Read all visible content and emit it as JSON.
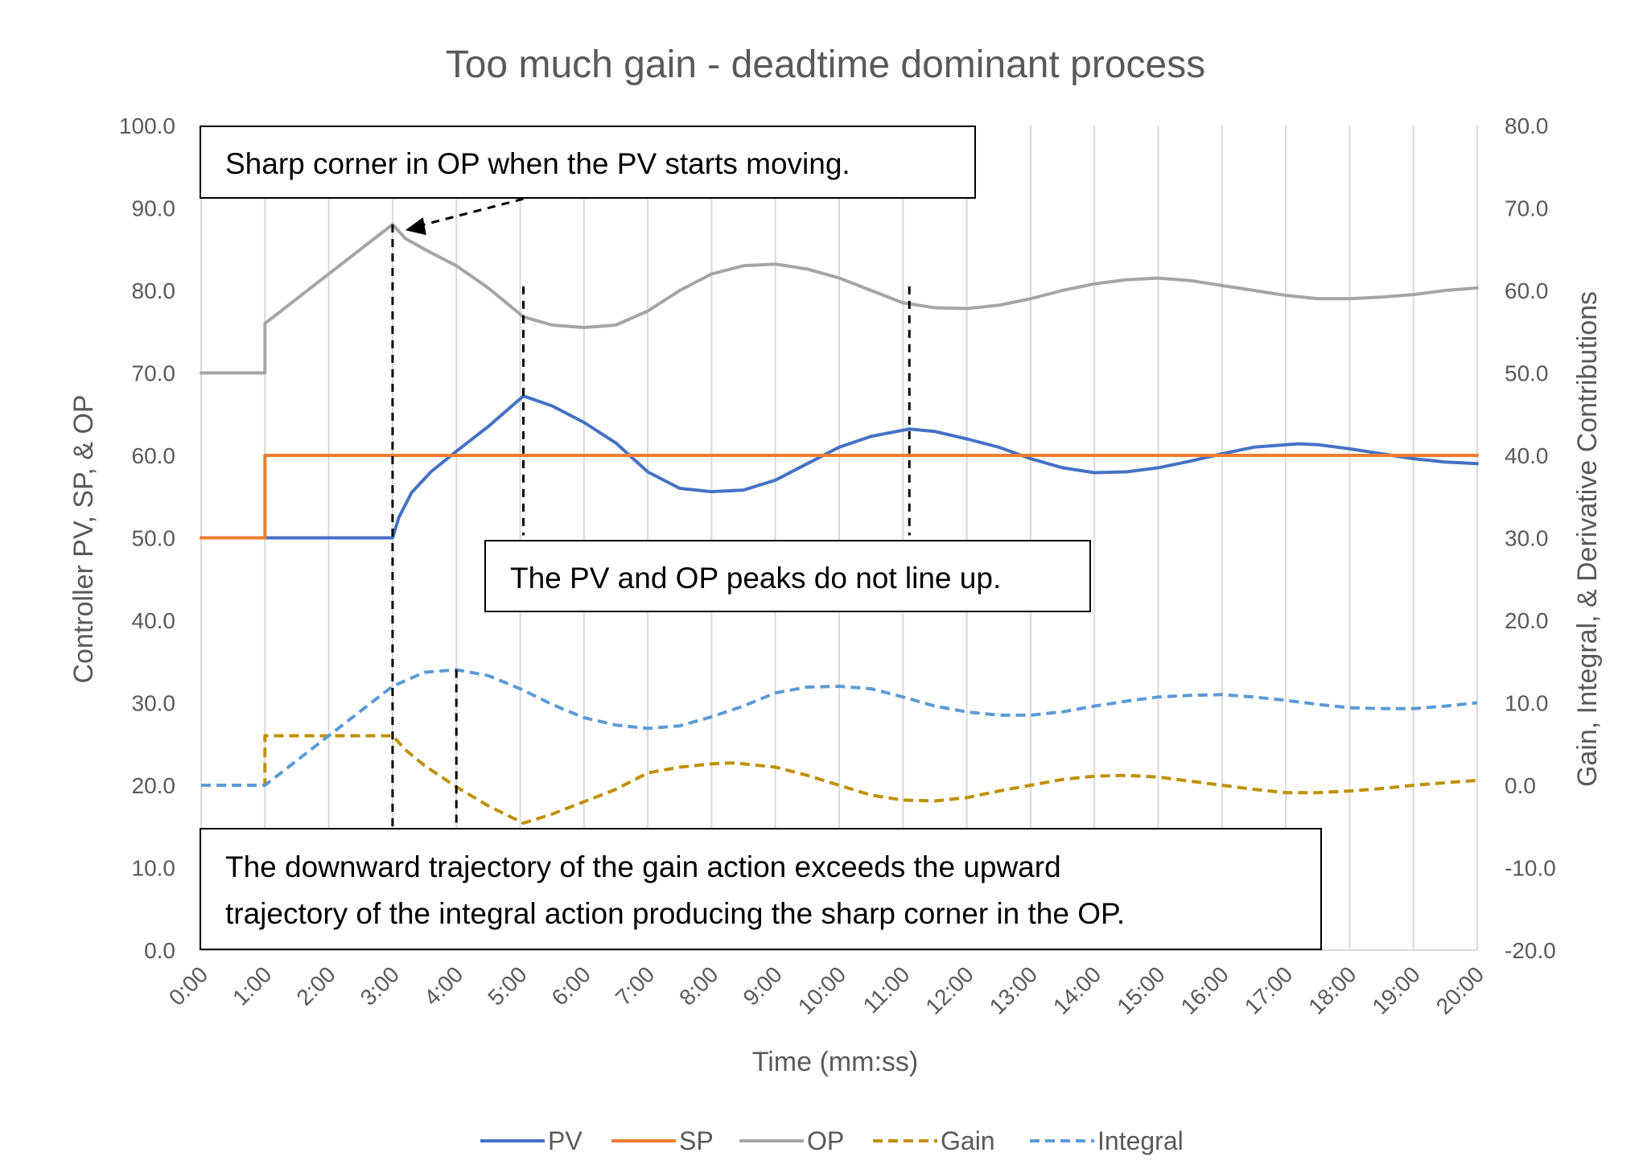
{
  "chart_data": {
    "type": "line",
    "title": "Too much gain - deadtime dominant process",
    "xlabel": "Time (mm:ss)",
    "ylabel_left": "Controller PV, SP, & OP",
    "ylabel_right": "Gain, Integral, & Derivative Contributions",
    "xlim": [
      0,
      20
    ],
    "ylim_left": [
      0,
      100
    ],
    "ylim_right": [
      -20,
      80
    ],
    "grid": "vertical",
    "legend_position": "bottom",
    "x_tick_labels": [
      "0:00",
      "1:00",
      "2:00",
      "3:00",
      "4:00",
      "5:00",
      "6:00",
      "7:00",
      "8:00",
      "9:00",
      "10:00",
      "11:00",
      "12:00",
      "13:00",
      "14:00",
      "15:00",
      "16:00",
      "17:00",
      "18:00",
      "19:00",
      "20:00"
    ],
    "y_left_tick_labels": [
      "0.0",
      "10.0",
      "20.0",
      "30.0",
      "40.0",
      "50.0",
      "60.0",
      "70.0",
      "80.0",
      "90.0",
      "100.0"
    ],
    "y_right_tick_labels": [
      "-20.0",
      "-10.0",
      "0.0",
      "10.0",
      "20.0",
      "30.0",
      "40.0",
      "50.0",
      "60.0",
      "70.0",
      "80.0"
    ],
    "series": [
      {
        "name": "PV",
        "axis": "left",
        "color": "#4472C4",
        "dash": "solid",
        "x": [
          0,
          1,
          2,
          3,
          3.1,
          3.3,
          3.6,
          4,
          4.5,
          5.05,
          5.5,
          6,
          6.5,
          7,
          7.5,
          8,
          8.5,
          9,
          9.5,
          10,
          10.5,
          11.1,
          11.5,
          12,
          12.5,
          13,
          13.5,
          14,
          14.5,
          15,
          15.5,
          16,
          16.5,
          17.2,
          17.5,
          18,
          18.5,
          19,
          19.5,
          20
        ],
        "y": [
          50,
          50,
          50,
          50,
          52.5,
          55.5,
          58,
          60.5,
          63.5,
          67.2,
          66,
          64,
          61.5,
          58,
          56,
          55.6,
          55.8,
          57,
          59,
          61,
          62.3,
          63.2,
          62.9,
          62,
          61,
          59.6,
          58.5,
          57.9,
          58,
          58.5,
          59.3,
          60.2,
          61,
          61.4,
          61.3,
          60.8,
          60.2,
          59.6,
          59.2,
          59
        ]
      },
      {
        "name": "SP",
        "axis": "left",
        "color": "#ED7D31",
        "dash": "solid",
        "x": [
          0,
          1,
          1,
          20
        ],
        "y": [
          50,
          50,
          60,
          60
        ]
      },
      {
        "name": "OP",
        "axis": "left",
        "color": "#A5A5A5",
        "dash": "solid",
        "x": [
          0,
          1,
          1,
          3,
          3.2,
          3.5,
          4,
          4.5,
          5.05,
          5.5,
          6,
          6.5,
          7,
          7.5,
          8,
          8.5,
          9,
          9.5,
          10,
          10.5,
          11,
          11.5,
          12,
          12.5,
          13,
          13.5,
          14,
          14.5,
          15,
          15.5,
          16,
          16.5,
          17,
          17.5,
          18,
          18.5,
          19,
          19.5,
          20
        ],
        "y": [
          70,
          70,
          76,
          88,
          86.3,
          85,
          83,
          80.3,
          76.8,
          75.8,
          75.5,
          75.8,
          77.5,
          80,
          82,
          83,
          83.2,
          82.6,
          81.5,
          80,
          78.5,
          77.9,
          77.8,
          78.2,
          79,
          80,
          80.8,
          81.3,
          81.5,
          81.2,
          80.6,
          80,
          79.4,
          79,
          79,
          79.2,
          79.5,
          80,
          80.3
        ]
      },
      {
        "name": "Gain",
        "axis": "right",
        "color": "#BF9000",
        "dash": "dashed",
        "x": [
          0,
          1,
          1,
          3,
          3.2,
          3.5,
          4,
          4.5,
          5.05,
          5.5,
          6,
          6.5,
          7,
          7.5,
          8,
          8.3,
          8.5,
          9,
          9.5,
          10,
          10.5,
          11,
          11.5,
          12,
          12.5,
          13,
          13.5,
          14,
          14.5,
          15,
          15.5,
          16,
          16.5,
          17,
          17.5,
          18,
          18.5,
          19,
          19.5,
          20
        ],
        "y": [
          0,
          0,
          6,
          6,
          4.3,
          2.4,
          -0.2,
          -2.5,
          -4.6,
          -3.5,
          -2,
          -0.5,
          1.5,
          2.2,
          2.6,
          2.7,
          2.6,
          2.2,
          1.2,
          0,
          -1.2,
          -1.8,
          -1.9,
          -1.5,
          -0.7,
          0,
          0.7,
          1.1,
          1.2,
          1,
          0.5,
          0,
          -0.5,
          -0.9,
          -0.9,
          -0.7,
          -0.4,
          0,
          0.3,
          0.6
        ]
      },
      {
        "name": "Integral",
        "axis": "right",
        "color": "#5B9BD5",
        "dash": "dashed",
        "x": [
          0,
          1,
          2,
          3,
          3.5,
          4,
          4.5,
          5,
          5.5,
          6,
          6.5,
          7,
          7.5,
          8,
          8.5,
          9,
          9.5,
          10,
          10.5,
          11,
          11.5,
          12,
          12.5,
          13,
          13.5,
          14,
          14.5,
          15,
          15.5,
          16,
          16.5,
          17,
          17.5,
          18,
          18.5,
          19,
          19.5,
          20
        ],
        "y": [
          0,
          0,
          6,
          12,
          13.7,
          14,
          13.3,
          11.7,
          9.8,
          8.2,
          7.3,
          6.9,
          7.2,
          8.3,
          9.6,
          11.2,
          11.9,
          12,
          11.7,
          10.7,
          9.6,
          8.9,
          8.5,
          8.5,
          8.9,
          9.6,
          10.2,
          10.7,
          10.9,
          11,
          10.7,
          10.3,
          9.8,
          9.4,
          9.3,
          9.3,
          9.6,
          10
        ]
      }
    ],
    "annotations": [
      {
        "text": "Sharp corner in OP when the PV starts moving."
      },
      {
        "text": "The PV and OP peaks do not line up."
      },
      {
        "lines": [
          "The downward trajectory of the gain action exceeds the upward",
          "trajectory of the integral action producing the sharp corner in the OP."
        ]
      }
    ]
  }
}
